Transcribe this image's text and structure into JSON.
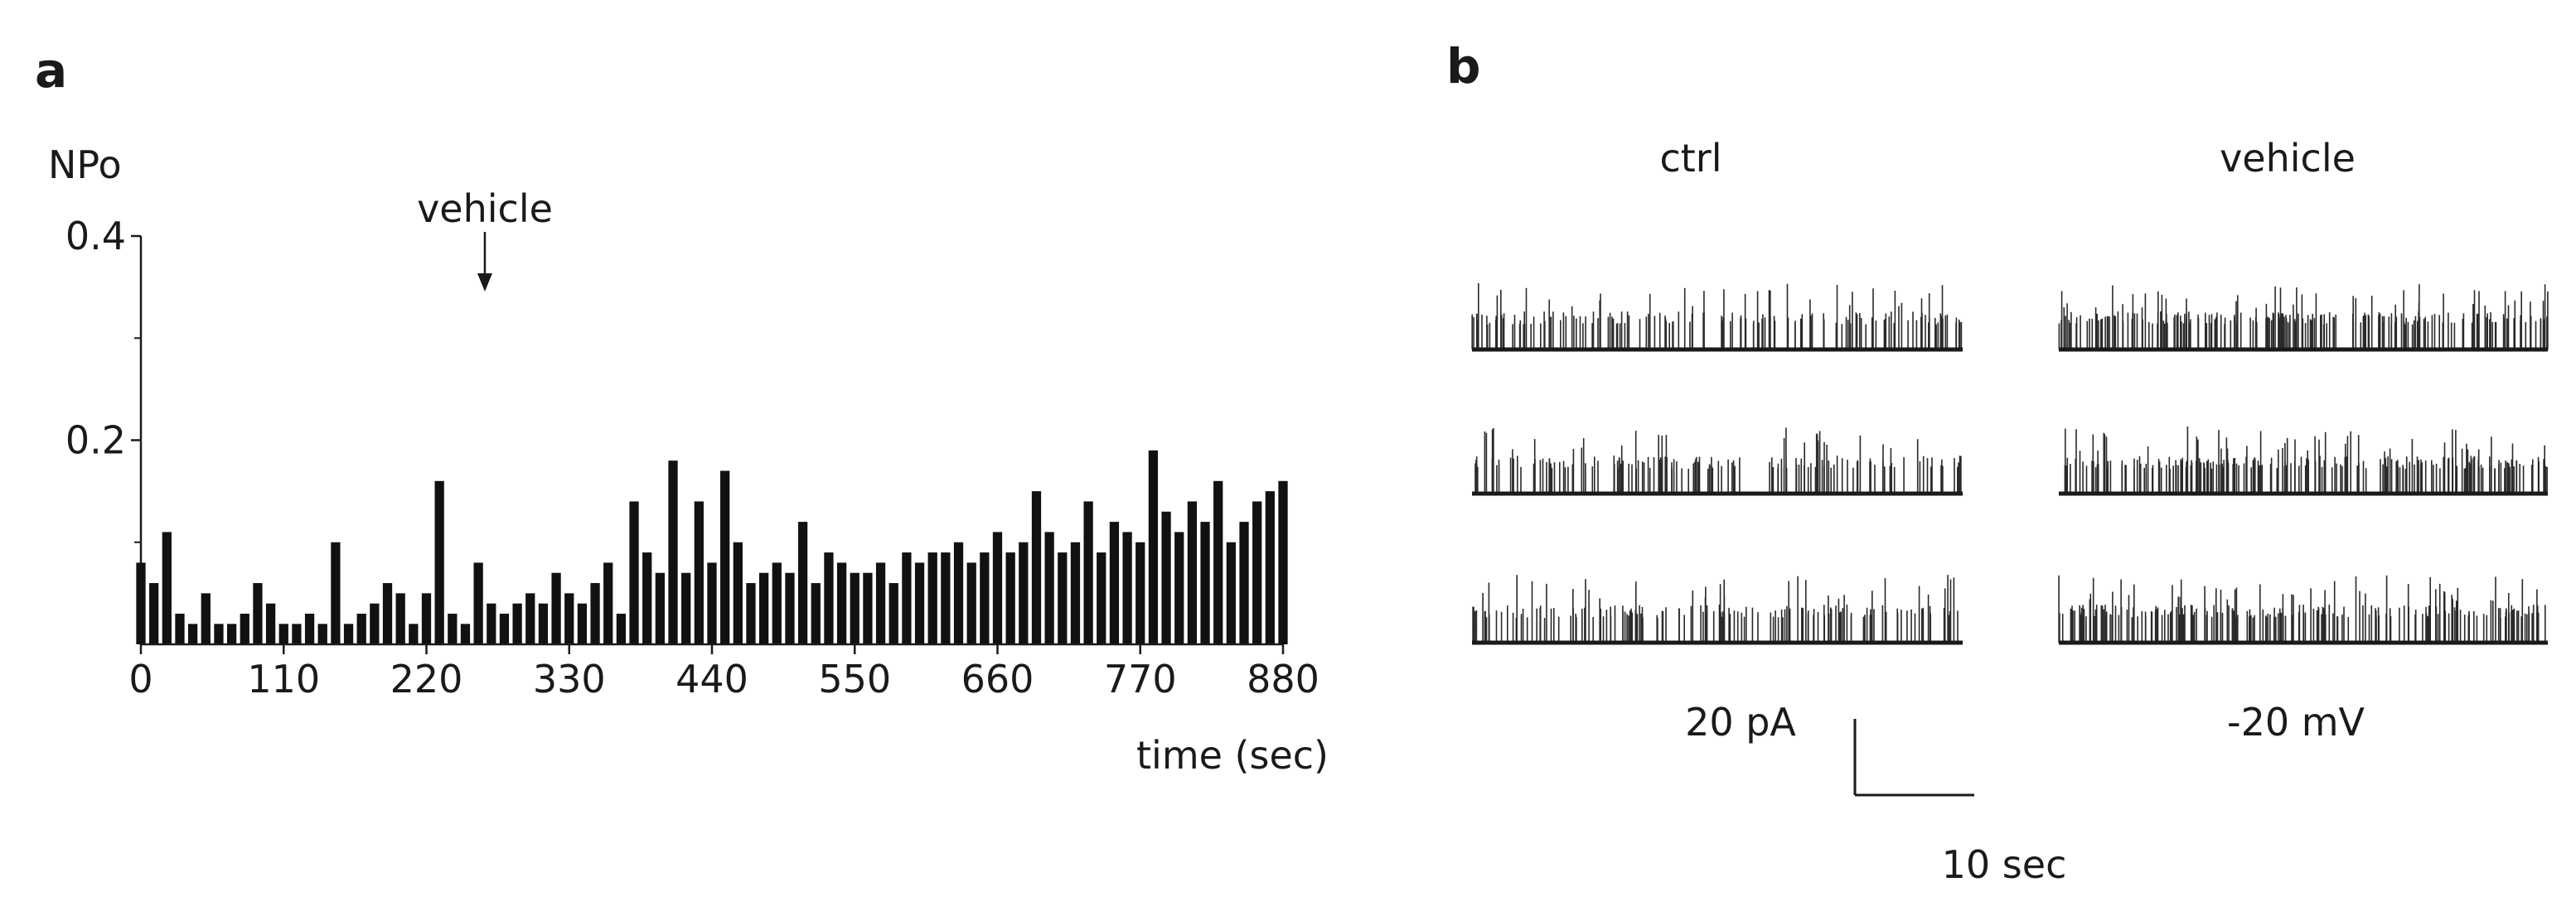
{
  "panel_a": {
    "letter": "a",
    "ylabel": "NPo",
    "xlabel": "time (sec)",
    "annotation": "vehicle",
    "chart_data": {
      "type": "bar",
      "ylabel": "NPo",
      "xlabel": "time (sec)",
      "xlim": [
        0,
        880
      ],
      "ylim": [
        0,
        0.4
      ],
      "xticks": [
        0,
        110,
        220,
        330,
        440,
        550,
        660,
        770,
        880
      ],
      "yticks_labeled": [
        {
          "value": 0.4,
          "label": "0.4"
        },
        {
          "value": 0.2,
          "label": "0.2"
        }
      ],
      "yticks_minor": [
        0.1,
        0.3
      ],
      "annotation": {
        "text": "vehicle",
        "x": 265
      },
      "x": [
        0,
        10,
        20,
        30,
        40,
        50,
        60,
        70,
        80,
        90,
        100,
        110,
        120,
        130,
        140,
        150,
        160,
        170,
        180,
        190,
        200,
        210,
        220,
        230,
        240,
        250,
        260,
        270,
        280,
        290,
        300,
        310,
        320,
        330,
        340,
        350,
        360,
        370,
        380,
        390,
        400,
        410,
        420,
        430,
        440,
        450,
        460,
        470,
        480,
        490,
        500,
        510,
        520,
        530,
        540,
        550,
        560,
        570,
        580,
        590,
        600,
        610,
        620,
        630,
        640,
        650,
        660,
        670,
        680,
        690,
        700,
        710,
        720,
        730,
        740,
        750,
        760,
        770,
        780,
        790,
        800,
        810,
        820,
        830,
        840,
        850,
        860,
        870,
        880
      ],
      "values": [
        0.08,
        0.06,
        0.11,
        0.03,
        0.02,
        0.05,
        0.02,
        0.02,
        0.03,
        0.06,
        0.04,
        0.02,
        0.02,
        0.03,
        0.02,
        0.1,
        0.02,
        0.03,
        0.04,
        0.06,
        0.05,
        0.02,
        0.05,
        0.16,
        0.03,
        0.02,
        0.08,
        0.04,
        0.03,
        0.04,
        0.05,
        0.04,
        0.07,
        0.05,
        0.04,
        0.06,
        0.08,
        0.03,
        0.14,
        0.09,
        0.07,
        0.18,
        0.07,
        0.14,
        0.08,
        0.17,
        0.1,
        0.06,
        0.07,
        0.08,
        0.07,
        0.12,
        0.06,
        0.09,
        0.08,
        0.07,
        0.07,
        0.08,
        0.06,
        0.09,
        0.08,
        0.09,
        0.09,
        0.1,
        0.08,
        0.09,
        0.11,
        0.09,
        0.1,
        0.15,
        0.11,
        0.09,
        0.1,
        0.14,
        0.09,
        0.12,
        0.11,
        0.1,
        0.19,
        0.13,
        0.11,
        0.14,
        0.12,
        0.16,
        0.1,
        0.12,
        0.14,
        0.15,
        0.16
      ]
    }
  },
  "panel_b": {
    "letter": "b",
    "traces": [
      {
        "label": "ctrl",
        "rows": 3
      },
      {
        "label": "vehicle",
        "rows": 3
      }
    ],
    "scale_bar": {
      "current": "20 pA",
      "time": "10 sec"
    },
    "holding_potential": "-20 mV"
  }
}
